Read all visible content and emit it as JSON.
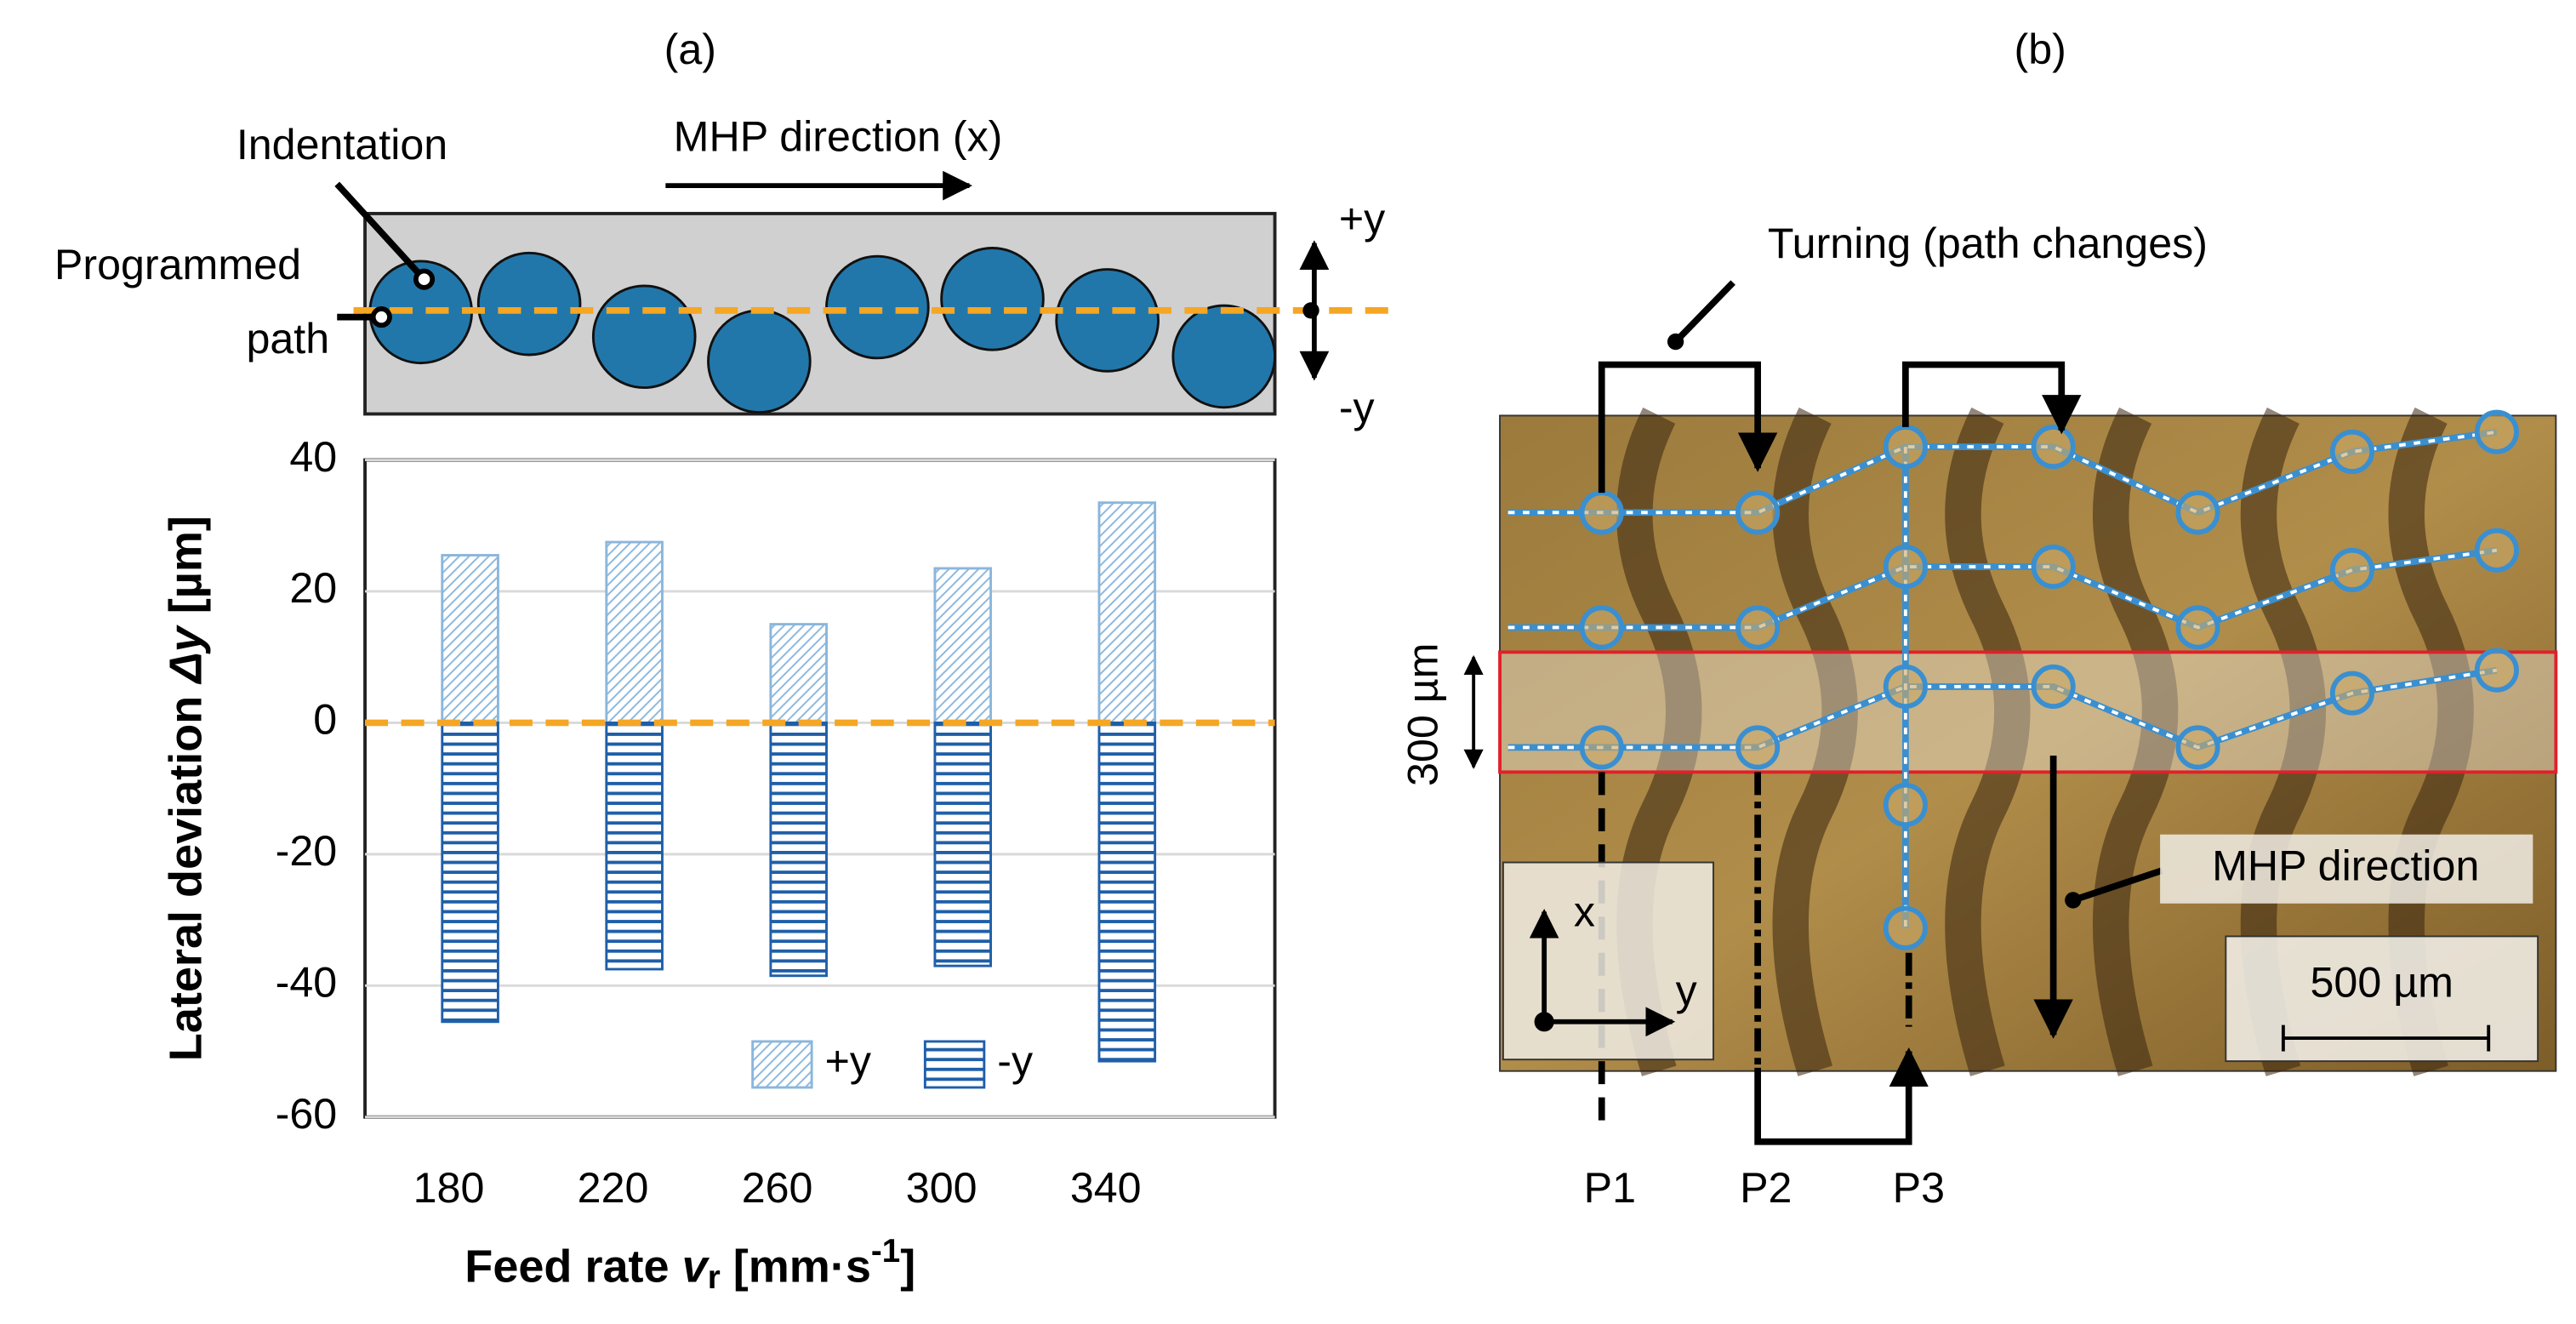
{
  "chart_data": {
    "type": "bar",
    "panel": "(a)",
    "xlabel_parts": [
      "Feed rate ",
      "v",
      "r",
      " [mm·s",
      "-1",
      "]"
    ],
    "ylabel_parts": [
      "Lateral deviation ",
      "Δy",
      " [µm]"
    ],
    "categories": [
      "180",
      "220",
      "260",
      "300",
      "340"
    ],
    "series": [
      {
        "name": "+y",
        "color": "#8ab6dc",
        "hatch": "diagonal",
        "values": [
          25.5,
          27.5,
          15,
          23.5,
          33.5
        ]
      },
      {
        "name": "-y",
        "color": "#1f5fa8",
        "hatch": "horizontal",
        "values": [
          -45.5,
          -37.5,
          -38.5,
          -37,
          -51.5
        ]
      }
    ],
    "ylim": [
      -60,
      40
    ],
    "yticks": [
      -60,
      -40,
      -20,
      0,
      20,
      40
    ],
    "grid": true,
    "legend": "lower right",
    "baseline_color": "#f5a623"
  },
  "schematic": {
    "indentation": "Indentation",
    "programmed": "Programmed",
    "path": "path",
    "direction": "MHP direction (x)",
    "plus_y": "+y",
    "minus_y": "-y"
  },
  "micrograph": {
    "panel": "(b)",
    "turning": "Turning  (path changes)",
    "width": "300 µm",
    "direction": "MHP direction",
    "scale": "500 µm",
    "x": "x",
    "y": "y",
    "p1": "P1",
    "p2": "P2",
    "p3": "P3"
  }
}
